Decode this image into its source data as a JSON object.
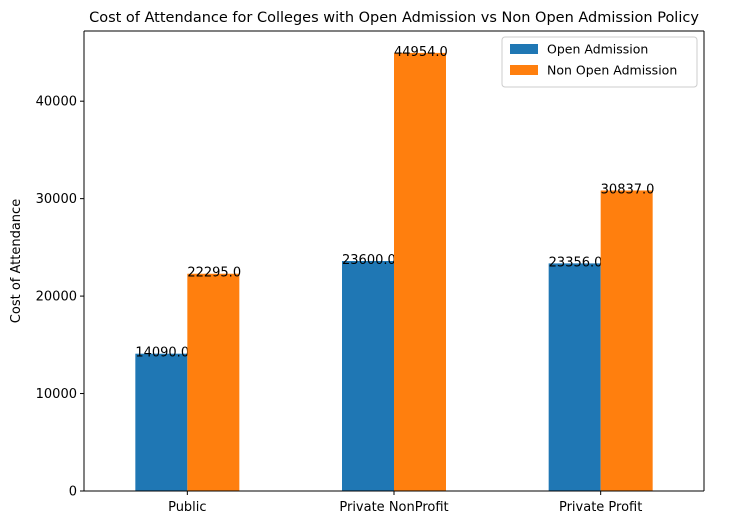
{
  "chart_data": {
    "type": "bar",
    "title": "Cost of Attendance for Colleges with Open Admission vs Non Open Admission Policy",
    "xlabel": "",
    "ylabel": "Cost of Attendance",
    "categories": [
      "Public",
      "Private NonProfit",
      "Private Profit"
    ],
    "series": [
      {
        "name": "Open Admission",
        "values": [
          14090.0,
          23600.0,
          23356.0
        ],
        "color": "#1f77b4"
      },
      {
        "name": "Non Open Admission",
        "values": [
          22295.0,
          44954.0,
          30837.0
        ],
        "color": "#ff7f0e"
      }
    ],
    "data_labels": [
      [
        "14090.0",
        "23600.0",
        "23356.0"
      ],
      [
        "22295.0",
        "44954.0",
        "30837.0"
      ]
    ],
    "ylim": [
      0,
      47202
    ],
    "yticks": [
      0,
      10000,
      20000,
      30000,
      40000
    ],
    "ytick_labels": [
      "0",
      "10000",
      "20000",
      "30000",
      "40000"
    ],
    "legend_position": "top-right",
    "grid": false
  }
}
